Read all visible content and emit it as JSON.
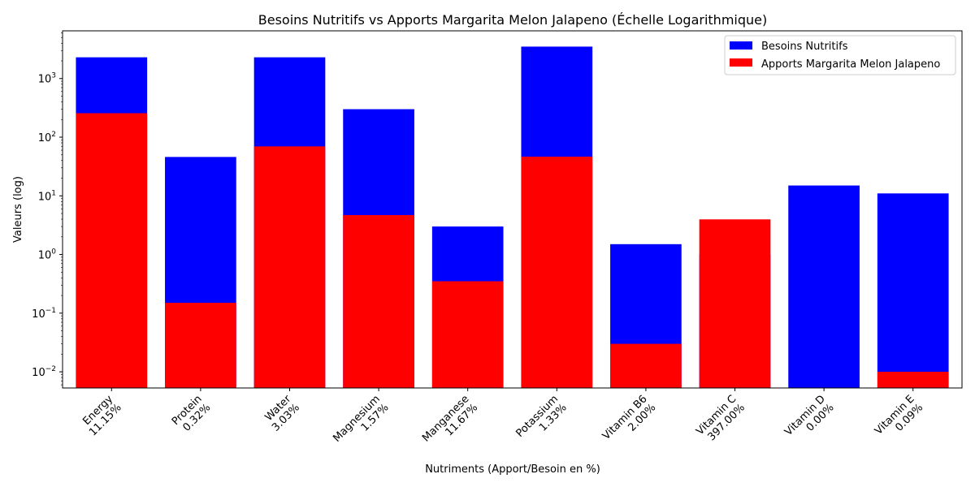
{
  "chart_data": {
    "type": "bar",
    "title": "Besoins Nutritifs vs Apports Margarita Melon Jalapeno (Échelle Logarithmique)",
    "xlabel": "Nutriments (Apport/Besoin en %)",
    "ylabel": "Valeurs (log)",
    "yscale": "log",
    "ylim": [
      0.0053,
      6500
    ],
    "yticks": [
      {
        "value": 0.01,
        "base": "10",
        "exp": "−2"
      },
      {
        "value": 0.1,
        "base": "10",
        "exp": "−1"
      },
      {
        "value": 1,
        "base": "10",
        "exp": "0"
      },
      {
        "value": 10,
        "base": "10",
        "exp": "1"
      },
      {
        "value": 100,
        "base": "10",
        "exp": "2"
      },
      {
        "value": 1000,
        "base": "10",
        "exp": "3"
      }
    ],
    "categories": [
      {
        "name": "Energy",
        "pct": "11.15%"
      },
      {
        "name": "Protein",
        "pct": "0.32%"
      },
      {
        "name": "Water",
        "pct": "3.03%"
      },
      {
        "name": "Magnesium",
        "pct": "1.57%"
      },
      {
        "name": "Manganese",
        "pct": "11.67%"
      },
      {
        "name": "Potassium",
        "pct": "1.33%"
      },
      {
        "name": "Vitamin B6",
        "pct": "2.00%"
      },
      {
        "name": "Vitamin C",
        "pct": "397.00%"
      },
      {
        "name": "Vitamin D",
        "pct": "0.00%"
      },
      {
        "name": "Vitamin E",
        "pct": "0.09%"
      }
    ],
    "series": [
      {
        "name": "Besoins Nutritifs",
        "color": "#0000ff",
        "values": [
          2300,
          46,
          2300,
          300,
          3,
          3500,
          1.5,
          1,
          15,
          11
        ]
      },
      {
        "name": "Apports Margarita Melon Jalapeno",
        "color": "#ff0000",
        "values": [
          256.5,
          0.15,
          69.7,
          4.7,
          0.35,
          46.5,
          0.03,
          3.97,
          0.0,
          0.01
        ]
      }
    ],
    "legend_position": "top-right",
    "grid": false
  }
}
